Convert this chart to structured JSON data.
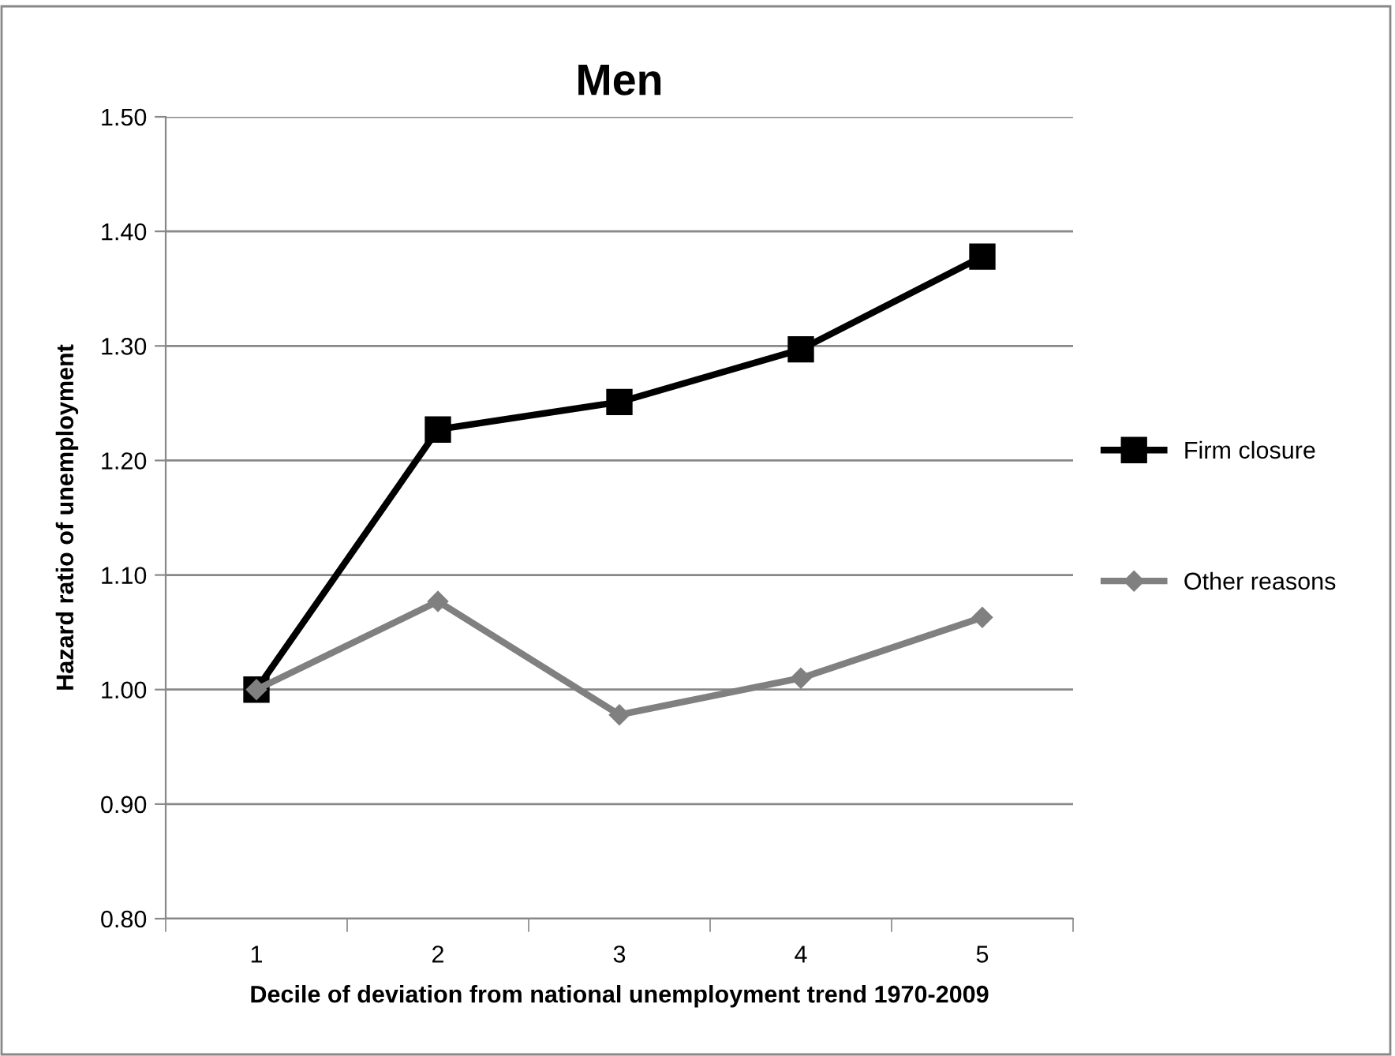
{
  "chart_data": {
    "type": "line",
    "title": "Men",
    "xlabel": "Decile of deviation from national unemployment trend 1970-2009",
    "ylabel": "Hazard ratio of unemployment",
    "categories": [
      "1",
      "2",
      "3",
      "4",
      "5"
    ],
    "series": [
      {
        "name": "Firm closure",
        "color": "#000000",
        "marker": "square",
        "values": [
          1.0,
          1.227,
          1.251,
          1.297,
          1.378
        ]
      },
      {
        "name": "Other reasons",
        "color": "#808080",
        "marker": "diamond",
        "values": [
          1.0,
          1.077,
          0.978,
          1.01,
          1.063
        ]
      }
    ],
    "ylim": [
      0.8,
      1.5
    ],
    "yticks": [
      {
        "value": 0.8,
        "label": "0.80"
      },
      {
        "value": 0.9,
        "label": "0.90"
      },
      {
        "value": 1.0,
        "label": "1.00"
      },
      {
        "value": 1.1,
        "label": "1.10"
      },
      {
        "value": 1.2,
        "label": "1.20"
      },
      {
        "value": 1.3,
        "label": "1.30"
      },
      {
        "value": 1.4,
        "label": "1.40"
      },
      {
        "value": 1.5,
        "label": "1.50"
      }
    ],
    "grid": "y",
    "legend": "right",
    "line_style": "solid"
  }
}
